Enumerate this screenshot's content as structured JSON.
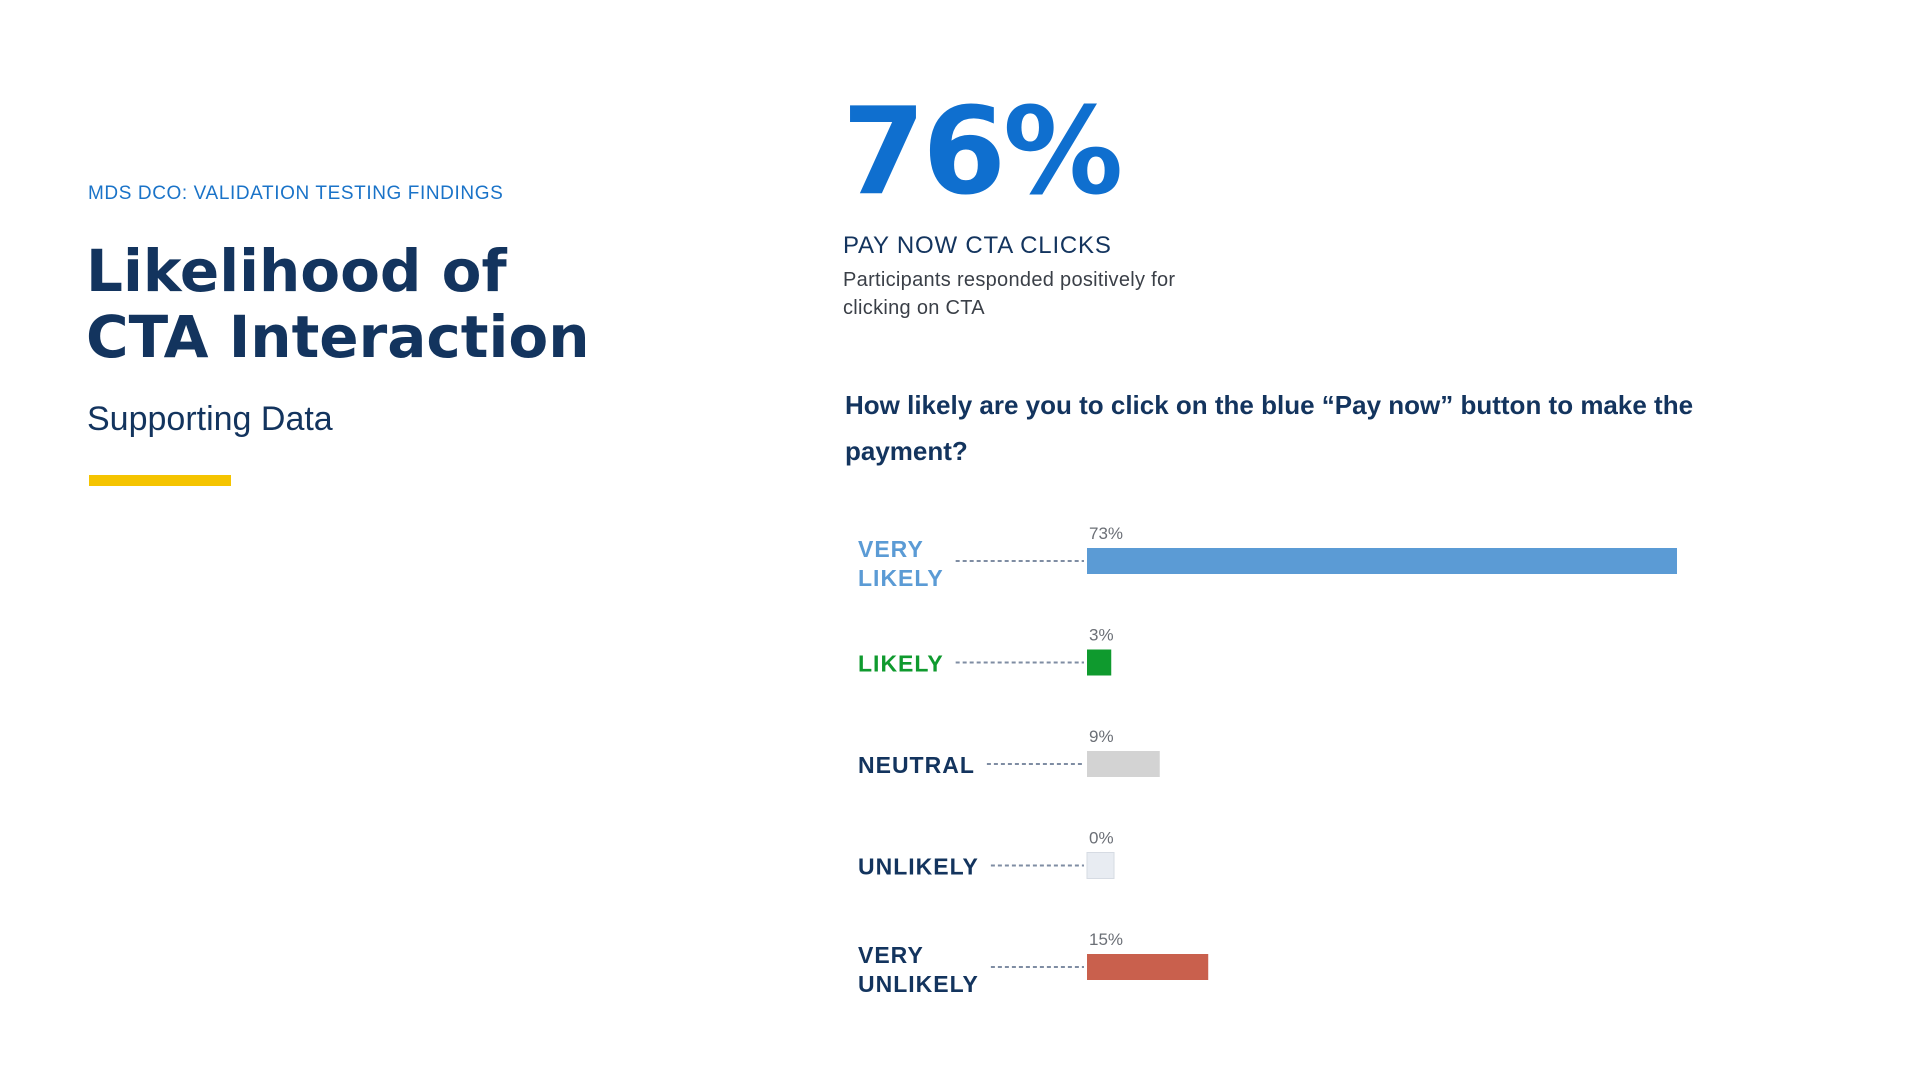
{
  "header": {
    "eyebrow": "MDS DCO: VALIDATION TESTING FINDINGS",
    "title": "Likelihood of CTA Interaction",
    "subtitle": "Supporting Data"
  },
  "highlight": {
    "value": "76%",
    "label": "PAY NOW CTA CLICKS",
    "description": "Participants responded positively for clicking on CTA"
  },
  "colors": {
    "accent_yellow": "#f5c400",
    "stat_blue": "#0f6fcf",
    "very_likely": "#5b9bd5",
    "likely": "#0f9a2e",
    "neutral": "#d3d3d3",
    "unlikely": "#e8ecf2",
    "very_unlikely": "#c9604d",
    "dark_label": "#13345e"
  },
  "chart_data": {
    "type": "bar",
    "orientation": "horizontal",
    "title": "How likely are you to click on the blue “Pay now” button to make the payment?",
    "categories": [
      "VERY LIKELY",
      "LIKELY",
      "NEUTRAL",
      "UNLIKELY",
      "VERY UNLIKELY"
    ],
    "category_lines": [
      [
        "VERY",
        "LIKELY"
      ],
      [
        "LIKELY"
      ],
      [
        "NEUTRAL"
      ],
      [
        "UNLIKELY"
      ],
      [
        "VERY",
        "UNLIKELY"
      ]
    ],
    "values": [
      73,
      3,
      9,
      0,
      15
    ],
    "value_labels": [
      "73%",
      "3%",
      "9%",
      "0%",
      "15%"
    ],
    "xlim": [
      0,
      73
    ],
    "grid": false,
    "legend": "none"
  }
}
